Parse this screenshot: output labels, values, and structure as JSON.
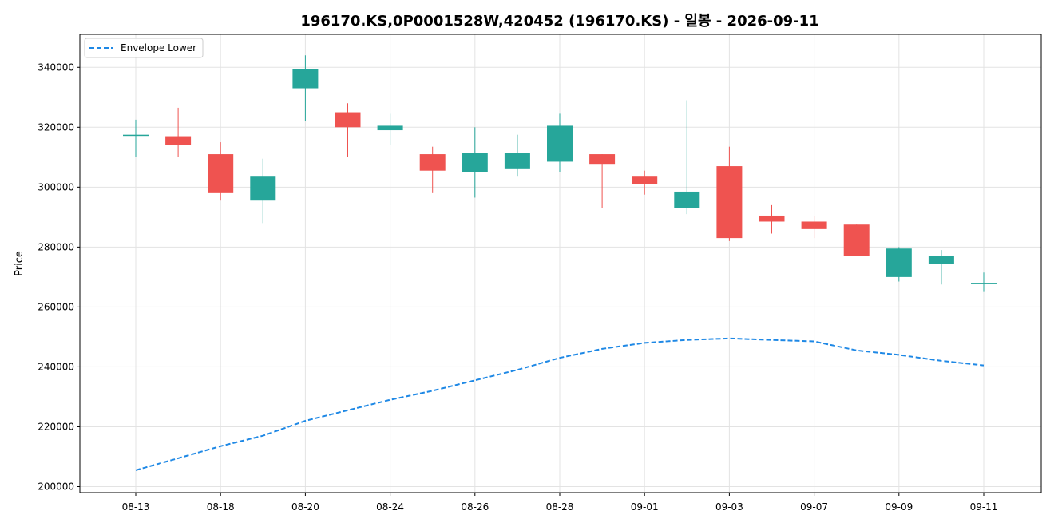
{
  "chart_data": {
    "type": "candlestick",
    "title": "196170.KS,0P0001528W,420452 (196170.KS) - 일봉 - 2026-09-11",
    "xlabel": "",
    "ylabel": "Price",
    "ylim": [
      198000,
      351000
    ],
    "yticks": [
      200000,
      220000,
      240000,
      260000,
      280000,
      300000,
      320000,
      340000
    ],
    "ytick_labels": [
      "200000",
      "220000",
      "240000",
      "260000",
      "280000",
      "300000",
      "320000",
      "340000"
    ],
    "x_tick_labels": [
      "08-13",
      "08-18",
      "08-20",
      "08-24",
      "08-26",
      "08-28",
      "09-01",
      "09-03",
      "09-07",
      "09-09",
      "09-11"
    ],
    "x_tick_index": [
      0,
      2,
      4,
      6,
      8,
      10,
      12,
      14,
      16,
      18,
      20
    ],
    "grid": true,
    "legend_position": "top-left",
    "colors": {
      "up": "#26a69a",
      "down": "#ef5350",
      "envelope": "#1e88e5"
    },
    "candles": [
      {
        "open": 317500,
        "high": 322500,
        "low": 310000,
        "close": 317500
      },
      {
        "open": 317000,
        "high": 326500,
        "low": 310000,
        "close": 314000
      },
      {
        "open": 311000,
        "high": 315000,
        "low": 295500,
        "close": 298000
      },
      {
        "open": 295500,
        "high": 309500,
        "low": 288000,
        "close": 303500
      },
      {
        "open": 333000,
        "high": 344000,
        "low": 322000,
        "close": 339500
      },
      {
        "open": 325000,
        "high": 328000,
        "low": 310000,
        "close": 320000
      },
      {
        "open": 319000,
        "high": 324500,
        "low": 314000,
        "close": 320500
      },
      {
        "open": 311000,
        "high": 313500,
        "low": 298000,
        "close": 305500
      },
      {
        "open": 305000,
        "high": 320000,
        "low": 296500,
        "close": 311500
      },
      {
        "open": 306000,
        "high": 317500,
        "low": 303500,
        "close": 311500
      },
      {
        "open": 308500,
        "high": 324500,
        "low": 305000,
        "close": 320500
      },
      {
        "open": 311000,
        "high": 311000,
        "low": 293000,
        "close": 307500
      },
      {
        "open": 303500,
        "high": 305500,
        "low": 297500,
        "close": 301000
      },
      {
        "open": 293000,
        "high": 329000,
        "low": 291000,
        "close": 298500
      },
      {
        "open": 307000,
        "high": 313500,
        "low": 282000,
        "close": 283000
      },
      {
        "open": 290500,
        "high": 294000,
        "low": 284500,
        "close": 288500
      },
      {
        "open": 288500,
        "high": 290500,
        "low": 283000,
        "close": 286000
      },
      {
        "open": 287500,
        "high": 287500,
        "low": 277000,
        "close": 277000
      },
      {
        "open": 270000,
        "high": 280000,
        "low": 268500,
        "close": 279500
      },
      {
        "open": 274500,
        "high": 279000,
        "low": 267500,
        "close": 277000
      },
      {
        "open": 268000,
        "high": 271500,
        "low": 265000,
        "close": 268000
      }
    ],
    "series": [
      {
        "name": "Envelope Lower",
        "values": [
          205500,
          209500,
          213500,
          217000,
          222000,
          225500,
          229000,
          232000,
          235500,
          239000,
          243000,
          246000,
          248000,
          249000,
          249500,
          249000,
          248500,
          245500,
          244000,
          242000,
          240500
        ]
      }
    ]
  }
}
